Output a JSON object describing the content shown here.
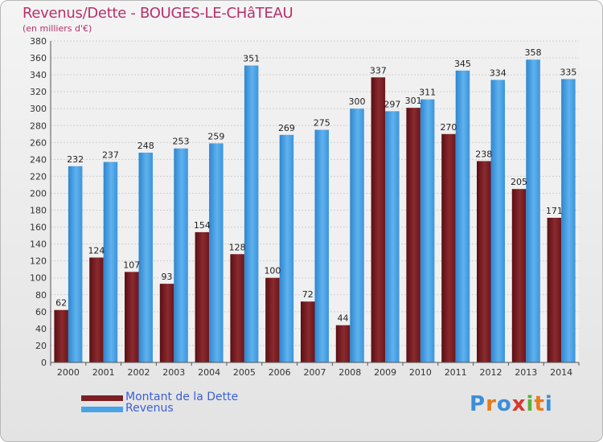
{
  "title": "Revenus/Dette - BOUGES-LE-CHâTEAU",
  "subtitle": "(en milliers d'€)",
  "colors": {
    "dette": "#7b1f24",
    "revenus": "#4aa3e6",
    "title": "#b5306a",
    "legend_text": "#3b5fd9"
  },
  "legend": [
    {
      "label": "Montant de la Dette",
      "color": "#7b1f24"
    },
    {
      "label": "Revenus",
      "color": "#4aa3e6"
    }
  ],
  "logo": {
    "text": "Proxiti"
  },
  "chart_data": {
    "type": "bar",
    "title": "Revenus/Dette - BOUGES-LE-CHâTEAU",
    "ylabel": "(en milliers d'€)",
    "xlabel": "",
    "ylim": [
      0,
      380
    ],
    "ytick_step": 20,
    "grid": true,
    "legend_position": "bottom-left",
    "categories": [
      "2000",
      "2001",
      "2002",
      "2003",
      "2004",
      "2005",
      "2006",
      "2007",
      "2008",
      "2009",
      "2010",
      "2011",
      "2012",
      "2013",
      "2014"
    ],
    "series": [
      {
        "name": "Montant de la Dette",
        "values": [
          62,
          124,
          107,
          93,
          154,
          128,
          100,
          72,
          44,
          337,
          301,
          270,
          238,
          205,
          171
        ]
      },
      {
        "name": "Revenus",
        "values": [
          232,
          237,
          248,
          253,
          259,
          351,
          269,
          275,
          300,
          297,
          311,
          345,
          334,
          358,
          335
        ]
      }
    ]
  }
}
